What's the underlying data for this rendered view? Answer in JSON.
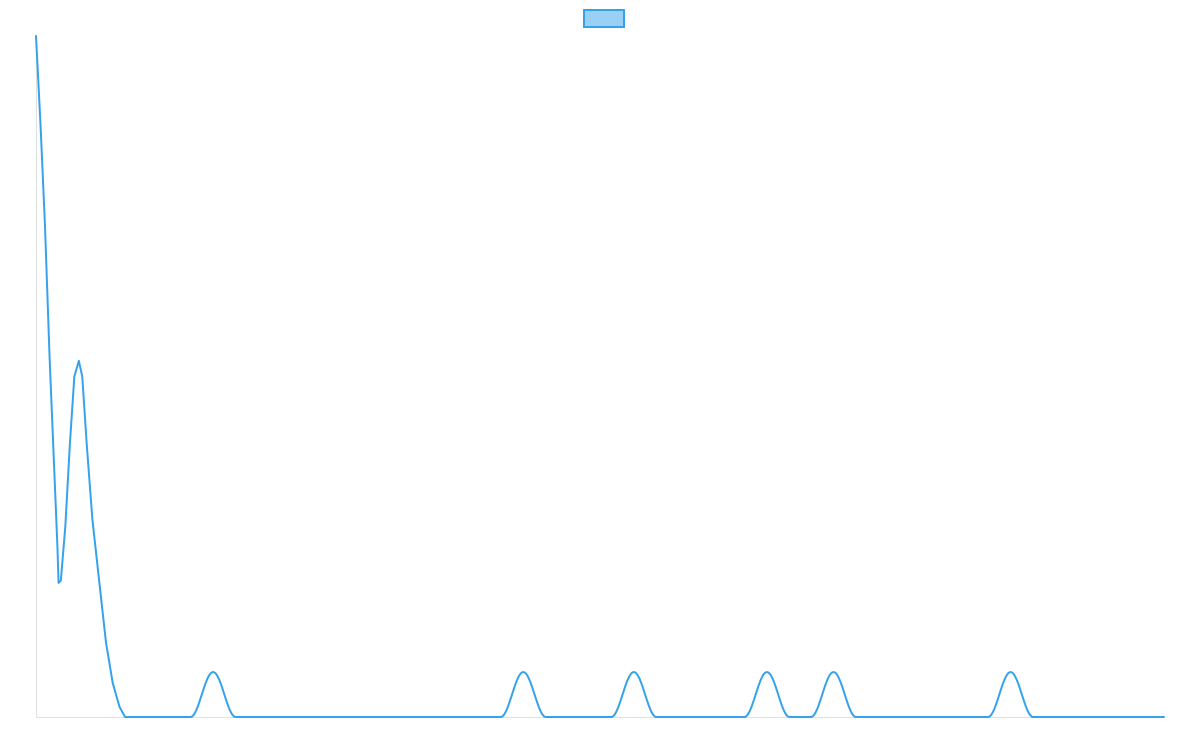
{
  "chart_data": {
    "type": "line",
    "title": "",
    "xlabel": "",
    "ylabel": "",
    "legend": {
      "position": "top-center",
      "entries": [
        {
          "label": ""
        }
      ]
    },
    "grid": false,
    "axes_visible": true,
    "tick_labels_visible": false,
    "xlim": [
      0,
      1
    ],
    "ylim": [
      0,
      1
    ],
    "colors": {
      "line": "#36a2eb",
      "legend_fill": "#9ad0f5",
      "axis": "#e0e0e0"
    },
    "series": [
      {
        "points": [
          [
            0.0,
            1.0
          ],
          [
            0.004,
            0.87
          ],
          [
            0.008,
            0.72
          ],
          [
            0.012,
            0.53
          ],
          [
            0.016,
            0.37
          ],
          [
            0.019,
            0.25
          ],
          [
            0.02,
            0.197
          ],
          [
            0.022,
            0.2
          ],
          [
            0.026,
            0.28
          ],
          [
            0.03,
            0.4
          ],
          [
            0.034,
            0.5
          ],
          [
            0.038,
            0.523
          ],
          [
            0.041,
            0.5
          ],
          [
            0.045,
            0.4
          ],
          [
            0.05,
            0.29
          ],
          [
            0.056,
            0.2
          ],
          [
            0.062,
            0.11
          ],
          [
            0.068,
            0.05
          ],
          [
            0.074,
            0.015
          ],
          [
            0.079,
            0.0
          ],
          [
            1.0,
            0.0
          ]
        ],
        "peaks": [
          {
            "center": 0.157,
            "height": 0.066,
            "halfwidth": 0.02
          },
          {
            "center": 0.432,
            "height": 0.066,
            "halfwidth": 0.02
          },
          {
            "center": 0.53,
            "height": 0.066,
            "halfwidth": 0.02
          },
          {
            "center": 0.648,
            "height": 0.066,
            "halfwidth": 0.02
          },
          {
            "center": 0.707,
            "height": 0.066,
            "halfwidth": 0.02
          },
          {
            "center": 0.864,
            "height": 0.066,
            "halfwidth": 0.02
          }
        ]
      }
    ]
  }
}
